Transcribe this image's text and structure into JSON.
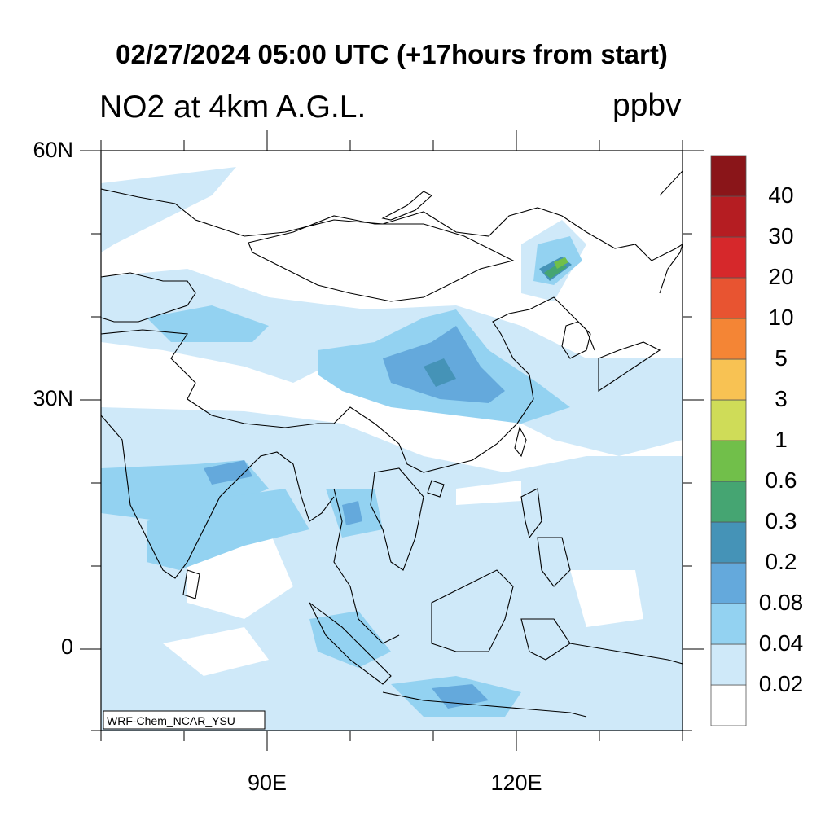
{
  "title": "02/27/2024 05:00 UTC (+17hours from start)",
  "subtitle": "NO2 at 4km A.G.L.",
  "units": "ppbv",
  "credit": "WRF-Chem_NCAR_YSU",
  "map": {
    "lat_range": [
      -10,
      60
    ],
    "lon_range": [
      70,
      140
    ],
    "y_tick_labels": [
      {
        "label": "60N",
        "lat": 60
      },
      {
        "label": "30N",
        "lat": 30
      },
      {
        "label": "0",
        "lat": 0
      }
    ],
    "x_tick_labels": [
      {
        "label": "90E",
        "lon": 90
      },
      {
        "label": "120E",
        "lon": 120
      }
    ]
  },
  "colorbar": {
    "colors": [
      "#ffffff",
      "#cfe9f9",
      "#93d2f1",
      "#64a9dc",
      "#4593b7",
      "#45a572",
      "#71bf4a",
      "#cfdc58",
      "#f8c253",
      "#f48535",
      "#e85431",
      "#d6282b",
      "#b51d22",
      "#8a1519"
    ],
    "labels": [
      "0.02",
      "0.04",
      "0.08",
      "0.2",
      "0.3",
      "0.6",
      "1",
      "3",
      "5",
      "10",
      "20",
      "30",
      "40"
    ]
  }
}
